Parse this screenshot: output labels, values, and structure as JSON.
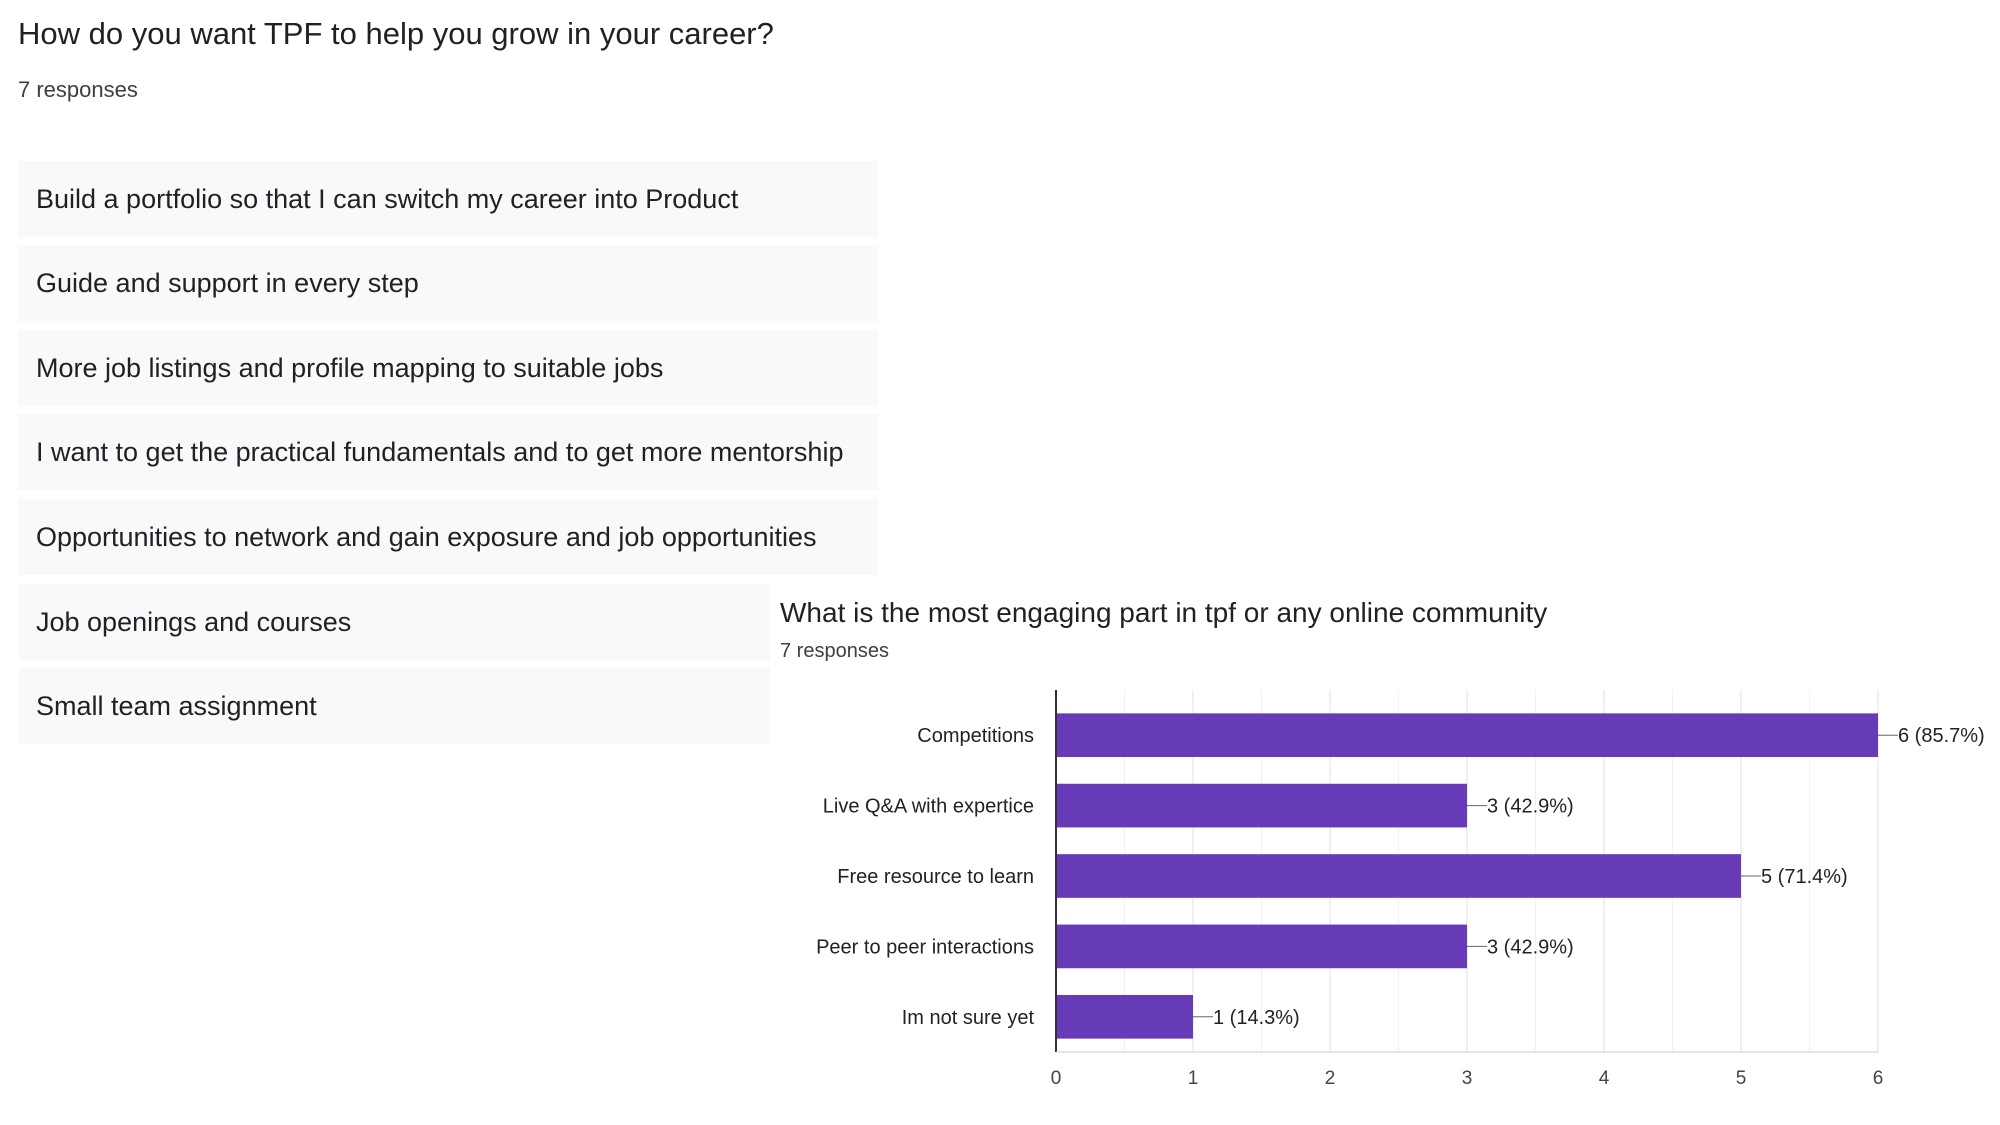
{
  "question1": {
    "title": "How do you want TPF to help you grow in your career?",
    "responses_count": "7 responses",
    "responses": [
      "Build a portfolio so that I can switch my career into Product",
      "Guide and support in every step",
      "More job listings and profile mapping to suitable jobs",
      "I want to get the practical fundamentals and to get more mentorship",
      "Opportunities to network and gain exposure and job opportunities",
      "Job openings and courses",
      "Small team assignment"
    ]
  },
  "question2": {
    "title": "What is the most engaging part in tpf or any online community",
    "responses_count": "7 responses"
  },
  "chart_data": {
    "type": "bar",
    "orientation": "horizontal",
    "categories": [
      "Competitions",
      "Live Q&A with expertice",
      "Free resource to learn",
      "Peer to peer interactions",
      "Im not sure yet"
    ],
    "values": [
      6,
      3,
      5,
      3,
      1
    ],
    "data_labels": [
      "6 (85.7%)",
      "3 (42.9%)",
      "5 (71.4%)",
      "3 (42.9%)",
      "1 (14.3%)"
    ],
    "xlim": [
      0,
      6
    ],
    "x_ticks": [
      0,
      1,
      2,
      3,
      4,
      5,
      6
    ],
    "bar_color": "#673ab7",
    "grid": true
  }
}
